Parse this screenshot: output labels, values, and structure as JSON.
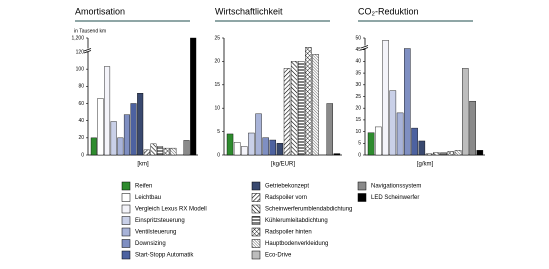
{
  "chart_data": [
    {
      "type": "bar",
      "title": "Amortisation",
      "ylabel": "in Tausend km",
      "xlabel": "[km]",
      "values": [
        20,
        66,
        103,
        39,
        20,
        47,
        60,
        72,
        6,
        13,
        10,
        8,
        8,
        null,
        17,
        1200
      ],
      "ylim": [
        0,
        1200
      ],
      "yticks": [
        0,
        20,
        40,
        60,
        80,
        100,
        120,
        {
          "value": 1200,
          "label": "1,200"
        }
      ],
      "axis_break": true
    },
    {
      "type": "bar",
      "title": "Wirtschaftlichkeit",
      "xlabel": "[kg/EUR]",
      "values": [
        4.5,
        2.7,
        1.8,
        4.7,
        8.8,
        3.7,
        3.2,
        2.5,
        18.5,
        20,
        20,
        23,
        21.5,
        null,
        11,
        0.3
      ],
      "ylim": [
        0,
        25
      ],
      "yticks": [
        0,
        5,
        10,
        15,
        20,
        25
      ],
      "axis_break": false
    },
    {
      "type": "bar",
      "title": "CO₂-Reduktion",
      "xlabel": "[g/km]",
      "values": [
        9.5,
        12,
        49,
        27.5,
        18,
        45.5,
        11.5,
        6,
        0.5,
        1,
        1,
        1.5,
        2,
        37,
        23,
        2
      ],
      "ylim": [
        0,
        50
      ],
      "yticks": [
        0,
        5,
        10,
        15,
        20,
        25,
        30,
        35,
        40,
        45,
        50
      ],
      "axis_break": true
    }
  ],
  "legend": {
    "categories": [
      "Reifen",
      "Leichtbau",
      "Vergleich Lexus RX Modell",
      "Einspritzsteuerung",
      "Ventilsteuerung",
      "Downsizing",
      "Start-Stopp Automatik",
      "Getriebekonzept",
      "Radspoiler vorn",
      "Scheinwerferumblendabdichtung",
      "Kühlerumleitabdichtung",
      "Radspoiler hinten",
      "Hauptbodenverkleidung",
      "Eco-Drive",
      "Navigationssystem",
      "LED Scheinwerfer"
    ],
    "colors": [
      "#2e8b2e",
      "#ffffff",
      "#f4f4fa",
      "#c9d0e8",
      "#a8b3d8",
      "#7f8fc2",
      "#4d62a0",
      "#39496f",
      "#ffffff",
      "#ffffff",
      "#ffffff",
      "#ffffff",
      "#ffffff",
      "#bdbdbd",
      "#8a8a8a",
      "#000000"
    ],
    "hatch": [
      null,
      null,
      null,
      null,
      null,
      null,
      null,
      null,
      "diagonal",
      "back-diagonal",
      "horizontal",
      "cross",
      "dense",
      null,
      null,
      null
    ]
  }
}
